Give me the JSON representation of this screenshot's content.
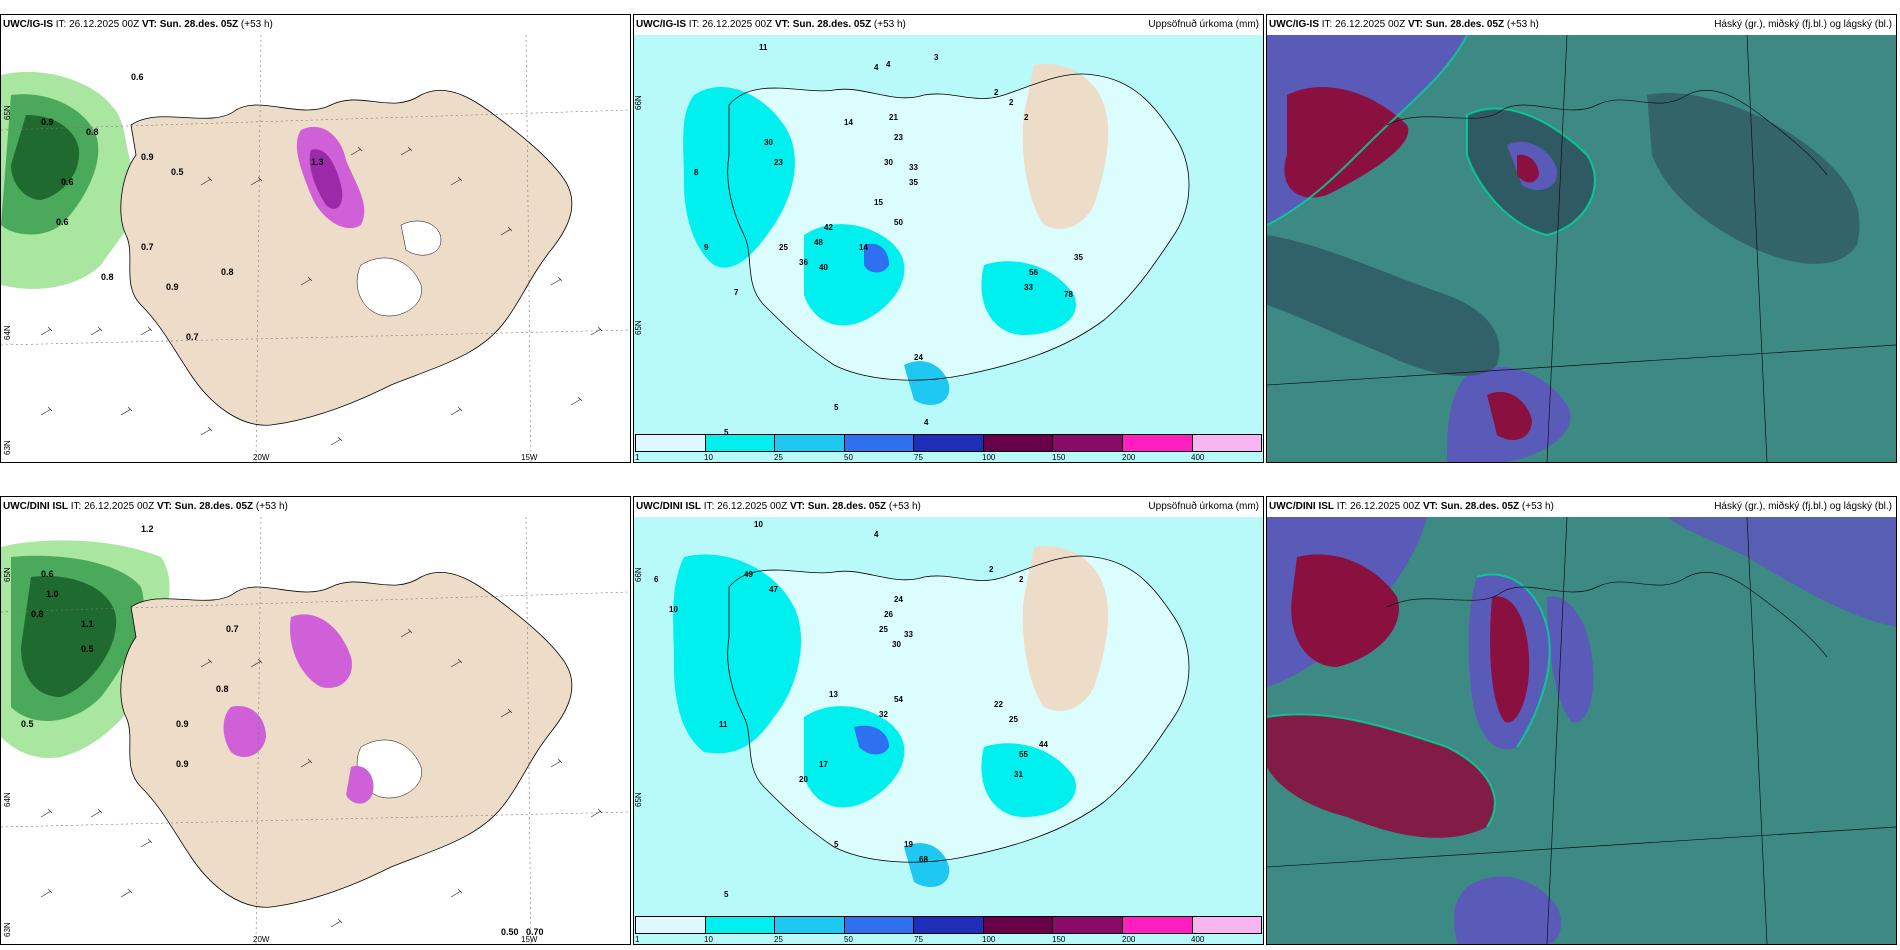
{
  "panels": [
    {
      "model": "UWC/IG-IS",
      "it": "IT: 26.12.2025 00Z",
      "vt_label": "VT: Sun. 28.des. 05Z",
      "lead": "(+53 h)",
      "title": "",
      "lat_labels": [
        "65N",
        "64N",
        "63N"
      ],
      "lon_labels": [
        "20W",
        "15W"
      ]
    },
    {
      "model": "UWC/IG-IS",
      "it": "IT: 26.12.2025 00Z",
      "vt_label": "VT: Sun. 28.des. 05Z",
      "lead": "(+53 h)",
      "title": "Uppsöfnuð úrkoma (mm)",
      "lat_labels": [
        "66N",
        "65N"
      ],
      "lon_labels": []
    },
    {
      "model": "UWC/IG-IS",
      "it": "IT: 26.12.2025 00Z",
      "vt_label": "VT: Sun. 28.des. 05Z",
      "lead": "(+53 h)",
      "title": "Háský (gr.), miðský (fj.bl.) og lágský (bl.)",
      "lat_labels": [],
      "lon_labels": []
    },
    {
      "model": "UWC/DINI ISL",
      "it": "IT: 26.12.2025 00Z",
      "vt_label": "VT: Sun. 28.des. 05Z",
      "lead": "(+53 h)",
      "title": "",
      "lat_labels": [
        "65N",
        "64N",
        "63N"
      ],
      "lon_labels": [
        "20W",
        "15W"
      ]
    },
    {
      "model": "UWC/DINI ISL",
      "it": "IT: 26.12.2025 00Z",
      "vt_label": "VT: Sun. 28.des. 05Z",
      "lead": "(+53 h)",
      "title": "Uppsöfnuð úrkoma (mm)",
      "lat_labels": [
        "66N",
        "65N"
      ],
      "lon_labels": []
    },
    {
      "model": "UWC/DINI ISL",
      "it": "IT: 26.12.2025 00Z",
      "vt_label": "VT: Sun. 28.des. 05Z",
      "lead": "(+53 h)",
      "title": "Háský (gr.), miðský (fj.bl.) og lágský (bl.)",
      "lat_labels": [],
      "lon_labels": []
    }
  ],
  "precip_colorbar": {
    "labels": [
      "1",
      "10",
      "25",
      "50",
      "75",
      "100",
      "150",
      "200",
      "400"
    ],
    "colors": [
      "#dff8ff",
      "#00f0f0",
      "#1ec8f0",
      "#2f70f0",
      "#1e2eb8",
      "#6a004a",
      "#8a0a6a",
      "#ff1ebe",
      "#f8b4f0"
    ]
  },
  "colors": {
    "land": "#eddcc8",
    "sea_cyan": "#b8fafa",
    "cloud_dark": "#2f5a64",
    "cloud_mid": "#3d8a84",
    "cloud_high": "#5a5ab8",
    "cloud_red": "#8a1040"
  },
  "precip_values_top": [
    "11",
    "4",
    "4",
    "3",
    "2",
    "2",
    "2",
    "14",
    "21",
    "23",
    "30",
    "33",
    "35",
    "42",
    "30",
    "23",
    "50",
    "48",
    "25",
    "24",
    "36",
    "40",
    "15",
    "14",
    "33",
    "56",
    "78",
    "35",
    "9",
    "7",
    "8",
    "4",
    "5",
    "5"
  ],
  "precip_values_bottom": [
    "10",
    "4",
    "2",
    "2",
    "24",
    "26",
    "25",
    "30",
    "33",
    "49",
    "47",
    "13",
    "54",
    "32",
    "22",
    "25",
    "55",
    "44",
    "31",
    "19",
    "68",
    "20",
    "17",
    "11",
    "10",
    "6",
    "5",
    "5"
  ],
  "wind_values_top": [
    "0.6",
    "0.9",
    "0.8",
    "0.9",
    "0.6",
    "0.5",
    "0.8",
    "0.7",
    "0.9",
    "1.3",
    "0.6",
    "0.8",
    "0.7"
  ],
  "wind_values_bottom": [
    "1.2",
    "0.6",
    "1.0",
    "0.8",
    "1.1",
    "0.5",
    "0.9",
    "0.7",
    "0.8",
    "0.5",
    "0.50",
    "0.70",
    "0.9"
  ]
}
